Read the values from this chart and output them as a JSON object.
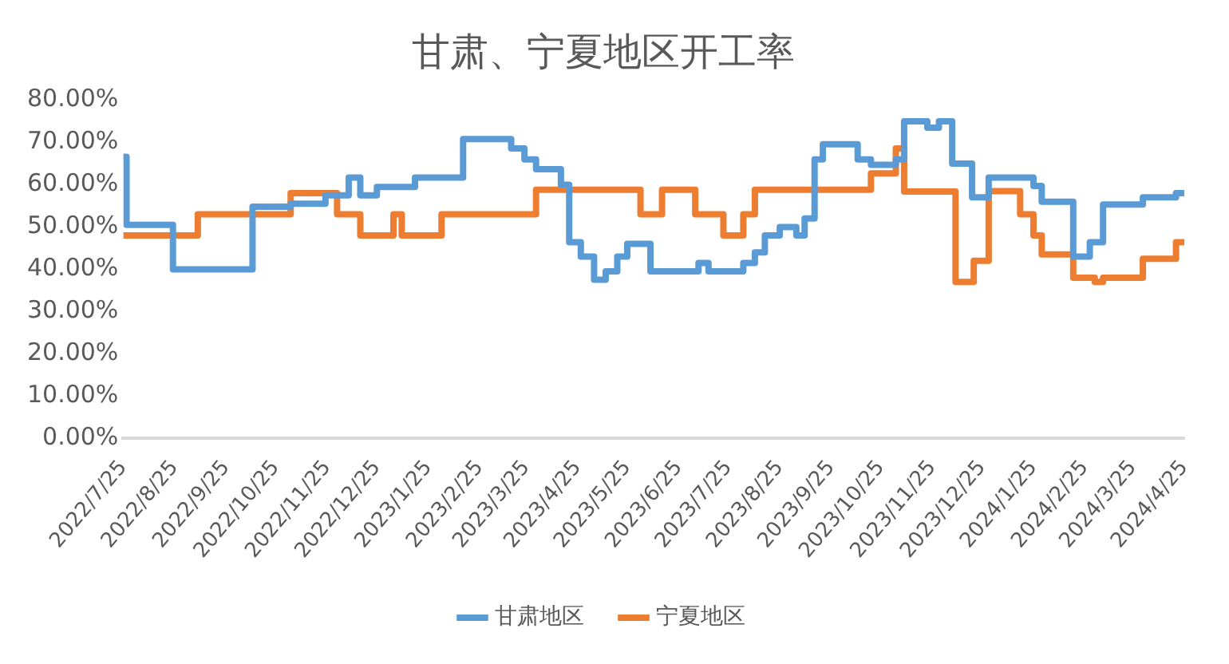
{
  "chart_data": {
    "type": "step",
    "title": "甘肃、宁夏地区开工率",
    "legend": "bottom",
    "grid": false,
    "xlim": [
      "2022-07-25",
      "2024-04-25"
    ],
    "xticks": [
      {
        "value": "2022-07-25",
        "label": "2022/7/25"
      },
      {
        "value": "2022-08-25",
        "label": "2022/8/25"
      },
      {
        "value": "2022-09-25",
        "label": "2022/9/25"
      },
      {
        "value": "2022-10-25",
        "label": "2022/10/25"
      },
      {
        "value": "2022-11-25",
        "label": "2022/11/25"
      },
      {
        "value": "2022-12-25",
        "label": "2022/12/25"
      },
      {
        "value": "2023-01-25",
        "label": "2023/1/25"
      },
      {
        "value": "2023-02-25",
        "label": "2023/2/25"
      },
      {
        "value": "2023-03-25",
        "label": "2023/3/25"
      },
      {
        "value": "2023-04-25",
        "label": "2023/4/25"
      },
      {
        "value": "2023-05-25",
        "label": "2023/5/25"
      },
      {
        "value": "2023-06-25",
        "label": "2023/6/25"
      },
      {
        "value": "2023-07-25",
        "label": "2023/7/25"
      },
      {
        "value": "2023-08-25",
        "label": "2023/8/25"
      },
      {
        "value": "2023-09-25",
        "label": "2023/9/25"
      },
      {
        "value": "2023-10-25",
        "label": "2023/10/25"
      },
      {
        "value": "2023-11-25",
        "label": "2023/11/25"
      },
      {
        "value": "2023-12-25",
        "label": "2023/12/25"
      },
      {
        "value": "2024-01-25",
        "label": "2024/1/25"
      },
      {
        "value": "2024-02-25",
        "label": "2024/2/25"
      },
      {
        "value": "2024-03-25",
        "label": "2024/3/25"
      },
      {
        "value": "2024-04-25",
        "label": "2024/4/25"
      }
    ],
    "ylim": [
      0,
      80
    ],
    "yticks": [
      {
        "value": 0,
        "label": "0.00%"
      },
      {
        "value": 10,
        "label": "10.00%"
      },
      {
        "value": 20,
        "label": "20.00%"
      },
      {
        "value": 30,
        "label": "30.00%"
      },
      {
        "value": 40,
        "label": "40.00%"
      },
      {
        "value": 50,
        "label": "50.00%"
      },
      {
        "value": 60,
        "label": "60.00%"
      },
      {
        "value": 70,
        "label": "70.00%"
      },
      {
        "value": 80,
        "label": "80.00%"
      }
    ],
    "series": [
      {
        "name": "甘肃地区",
        "color": "#5b9bd5",
        "x": [
          "2022-07-25",
          "2022-07-27",
          "2022-08-24",
          "2022-10-11",
          "2022-11-03",
          "2022-11-24",
          "2022-12-08",
          "2022-12-15",
          "2022-12-25",
          "2023-01-17",
          "2023-02-15",
          "2023-03-16",
          "2023-03-24",
          "2023-03-31",
          "2023-04-15",
          "2023-04-20",
          "2023-04-27",
          "2023-05-05",
          "2023-05-12",
          "2023-05-19",
          "2023-05-25",
          "2023-06-08",
          "2023-07-07",
          "2023-07-13",
          "2023-08-03",
          "2023-08-10",
          "2023-08-16",
          "2023-08-25",
          "2023-09-04",
          "2023-09-09",
          "2023-09-15",
          "2023-09-20",
          "2023-10-11",
          "2023-10-19",
          "2023-11-03",
          "2023-11-08",
          "2023-11-22",
          "2023-11-29",
          "2023-12-07",
          "2023-12-19",
          "2023-12-29",
          "2024-01-25",
          "2024-01-30",
          "2024-02-18",
          "2024-02-28",
          "2024-03-07",
          "2024-03-31",
          "2024-04-20",
          "2024-04-25"
        ],
        "values": [
          66.6,
          50.5,
          40,
          54.8,
          55.5,
          57.5,
          61.7,
          57.5,
          59.5,
          61.7,
          70.8,
          68.6,
          66,
          63.7,
          60,
          46.4,
          43,
          37.5,
          39.5,
          43,
          46,
          39.5,
          41.5,
          39.5,
          41.5,
          44,
          48,
          50,
          48,
          52,
          66,
          69.6,
          66,
          64.7,
          66,
          75,
          73.5,
          75,
          65,
          57,
          61.7,
          59.7,
          56,
          43,
          46.4,
          55.3,
          57,
          58,
          58
        ]
      },
      {
        "name": "宁夏地区",
        "color": "#ed7d31",
        "x": [
          "2022-07-25",
          "2022-09-08",
          "2022-11-03",
          "2022-12-01",
          "2022-12-15",
          "2023-01-04",
          "2023-01-09",
          "2023-02-02",
          "2023-03-31",
          "2023-06-02",
          "2023-06-15",
          "2023-07-05",
          "2023-07-22",
          "2023-08-03",
          "2023-08-10",
          "2023-10-19",
          "2023-11-03",
          "2023-11-08",
          "2023-12-09",
          "2023-12-20",
          "2023-12-29",
          "2024-01-17",
          "2024-01-25",
          "2024-01-30",
          "2024-02-18",
          "2024-03-02",
          "2024-03-07",
          "2024-03-31",
          "2024-04-20",
          "2024-04-25"
        ],
        "values": [
          48,
          53,
          58,
          53,
          48,
          53,
          48,
          53,
          58.8,
          53,
          58.8,
          53,
          48,
          53,
          58.8,
          62.7,
          68.6,
          58.4,
          37,
          42,
          58.5,
          53,
          48,
          43.5,
          38,
          37,
          38,
          42.5,
          46.4,
          46.4
        ]
      }
    ]
  }
}
